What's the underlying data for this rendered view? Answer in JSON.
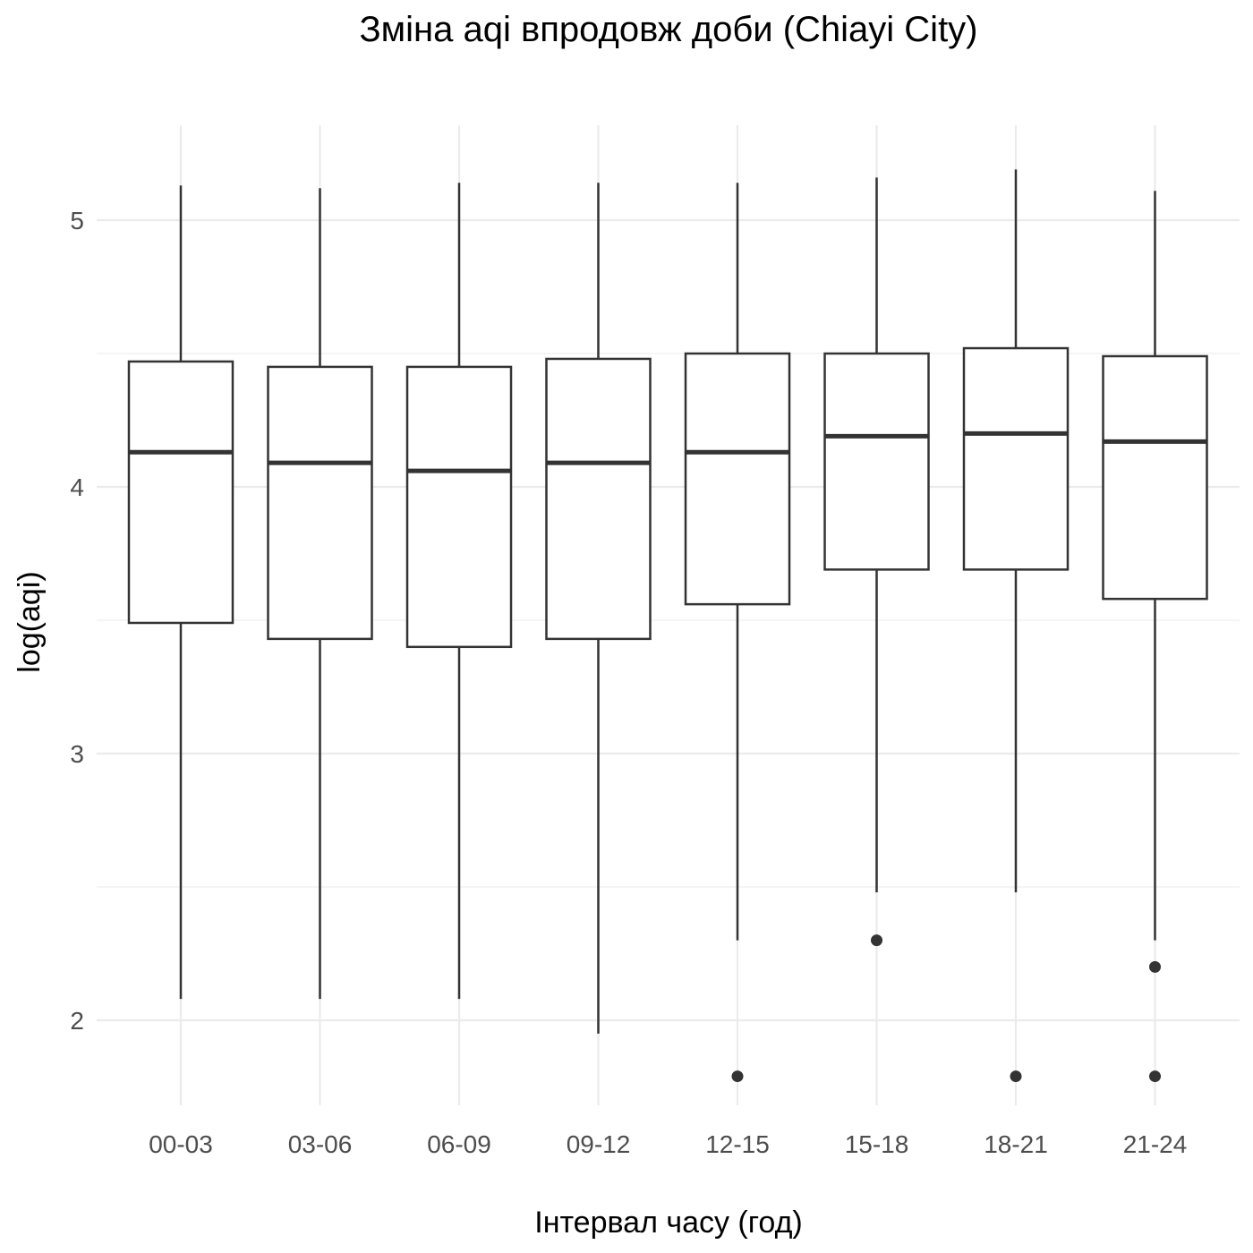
{
  "chart_data": {
    "type": "boxplot",
    "title": "Зміна aqi впродовж доби (Chiayi City)",
    "xlabel": "Інтервал часу (год)",
    "ylabel": "log(aqi)",
    "ylim": [
      1.65,
      5.35
    ],
    "yticks": [
      2,
      3,
      4,
      5
    ],
    "grid": true,
    "categories": [
      "00-03",
      "03-06",
      "06-09",
      "09-12",
      "12-15",
      "15-18",
      "18-21",
      "21-24"
    ],
    "boxes": [
      {
        "category": "00-03",
        "whisker_low": 2.08,
        "q1": 3.49,
        "median": 4.13,
        "q3": 4.47,
        "whisker_high": 5.13,
        "outliers": []
      },
      {
        "category": "03-06",
        "whisker_low": 2.08,
        "q1": 3.43,
        "median": 4.09,
        "q3": 4.45,
        "whisker_high": 5.12,
        "outliers": []
      },
      {
        "category": "06-09",
        "whisker_low": 2.08,
        "q1": 3.4,
        "median": 4.06,
        "q3": 4.45,
        "whisker_high": 5.14,
        "outliers": []
      },
      {
        "category": "09-12",
        "whisker_low": 1.95,
        "q1": 3.43,
        "median": 4.09,
        "q3": 4.48,
        "whisker_high": 5.14,
        "outliers": []
      },
      {
        "category": "12-15",
        "whisker_low": 2.3,
        "q1": 3.56,
        "median": 4.13,
        "q3": 4.5,
        "whisker_high": 5.14,
        "outliers": [
          1.79
        ]
      },
      {
        "category": "15-18",
        "whisker_low": 2.48,
        "q1": 3.69,
        "median": 4.19,
        "q3": 4.5,
        "whisker_high": 5.16,
        "outliers": [
          2.3
        ]
      },
      {
        "category": "18-21",
        "whisker_low": 2.48,
        "q1": 3.69,
        "median": 4.2,
        "q3": 4.52,
        "whisker_high": 5.19,
        "outliers": [
          1.79
        ]
      },
      {
        "category": "21-24",
        "whisker_low": 2.3,
        "q1": 3.58,
        "median": 4.17,
        "q3": 4.49,
        "whisker_high": 5.11,
        "outliers": [
          2.2,
          1.79
        ]
      }
    ],
    "colors": {
      "box_stroke": "#333333",
      "box_fill": "#ffffff",
      "grid": "#ebebeb",
      "tick_text": "#4d4d4d"
    }
  }
}
